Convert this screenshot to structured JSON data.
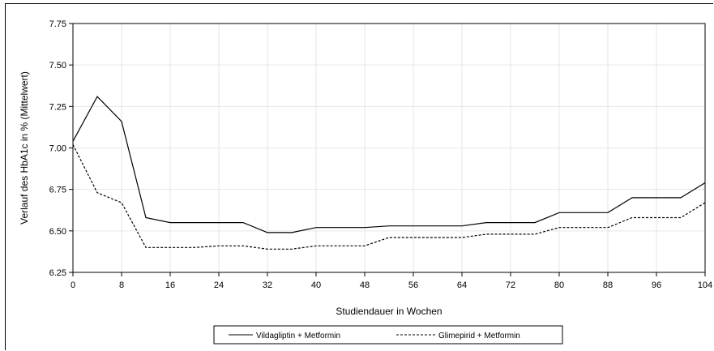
{
  "chart_data": {
    "type": "line",
    "title": "",
    "xlabel": "Studiendauer in Wochen",
    "ylabel": "Verlauf des HbA1c in % (Mittelwert)",
    "xlim": [
      0,
      104
    ],
    "ylim": [
      6.25,
      7.75
    ],
    "x_ticks": [
      "0",
      "8",
      "16",
      "24",
      "32",
      "40",
      "48",
      "56",
      "64",
      "72",
      "80",
      "88",
      "96",
      "104"
    ],
    "y_ticks": [
      "6.25",
      "6.50",
      "6.75",
      "7.00",
      "7.25",
      "7.50",
      "7.75"
    ],
    "grid": true,
    "legend_position": "bottom",
    "series": [
      {
        "name": "Vildagliptin + Metformin",
        "style": "solid",
        "color": "#000000",
        "x": [
          0,
          4,
          8,
          12,
          16,
          20,
          24,
          28,
          32,
          36,
          40,
          44,
          48,
          52,
          56,
          60,
          64,
          68,
          72,
          76,
          80,
          84,
          88,
          92,
          96,
          100,
          104
        ],
        "y": [
          7.04,
          7.31,
          7.16,
          6.58,
          6.55,
          6.55,
          6.55,
          6.55,
          6.49,
          6.49,
          6.52,
          6.52,
          6.52,
          6.53,
          6.53,
          6.53,
          6.53,
          6.55,
          6.55,
          6.55,
          6.61,
          6.61,
          6.61,
          6.7,
          6.7,
          6.7,
          6.79
        ]
      },
      {
        "name": "Glimepirid + Metformin",
        "style": "dashed",
        "color": "#000000",
        "x": [
          0,
          4,
          8,
          12,
          16,
          20,
          24,
          28,
          32,
          36,
          40,
          44,
          48,
          52,
          56,
          60,
          64,
          68,
          72,
          76,
          80,
          84,
          88,
          92,
          96,
          100,
          104
        ],
        "y": [
          7.02,
          6.73,
          6.67,
          6.4,
          6.4,
          6.4,
          6.41,
          6.41,
          6.39,
          6.39,
          6.41,
          6.41,
          6.41,
          6.46,
          6.46,
          6.46,
          6.46,
          6.48,
          6.48,
          6.48,
          6.52,
          6.52,
          6.52,
          6.58,
          6.58,
          6.58,
          6.67
        ]
      }
    ]
  }
}
